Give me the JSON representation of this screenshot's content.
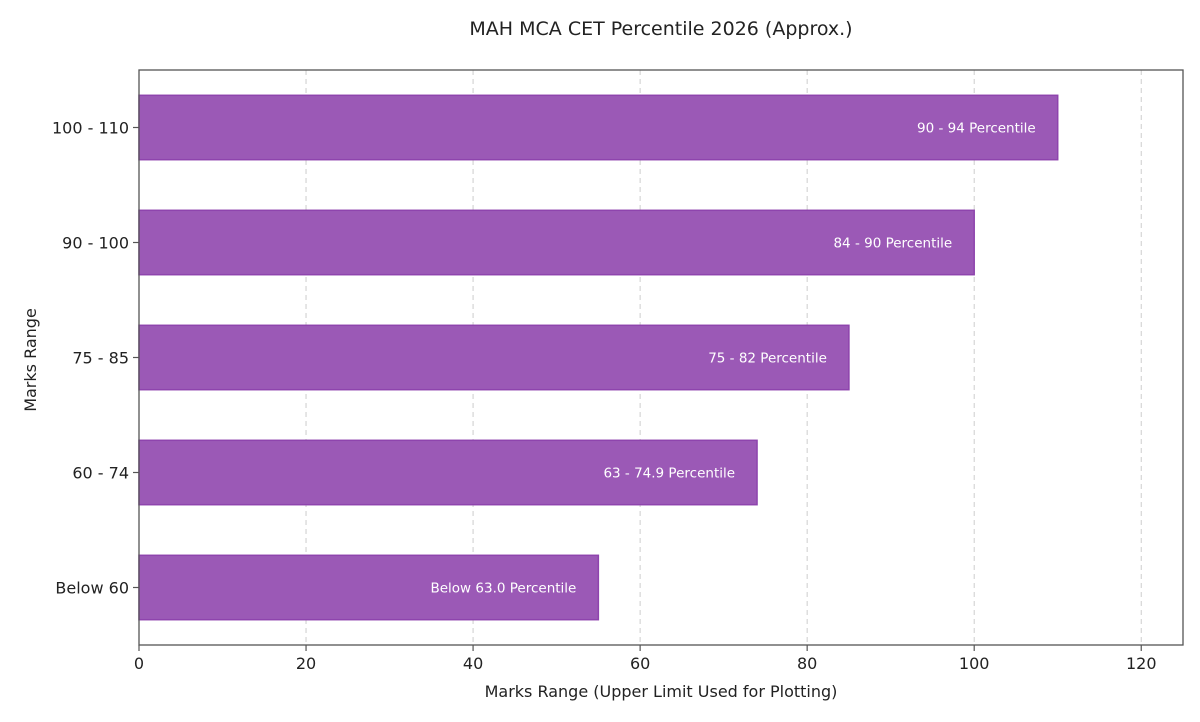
{
  "chart_data": {
    "type": "bar",
    "orientation": "horizontal",
    "title": "MAH MCA CET Percentile 2026 (Approx.)",
    "xlabel": "Marks Range (Upper Limit Used for Plotting)",
    "ylabel": "Marks Range",
    "categories": [
      "100 - 110",
      "90 - 100",
      "75 - 85",
      "60 - 74",
      "Below 60"
    ],
    "values": [
      110,
      100,
      85,
      74,
      55
    ],
    "bar_labels": [
      "90 - 94 Percentile",
      "84 - 90 Percentile",
      "75 - 82 Percentile",
      "63 - 74.9 Percentile",
      "Below 63.0 Percentile"
    ],
    "xlim": [
      0,
      125
    ],
    "xticks": [
      0,
      20,
      40,
      60,
      80,
      100,
      120
    ],
    "grid": "x-dashed",
    "bar_color": "#9b59b6",
    "bar_edge_color": "#8e44ad"
  }
}
